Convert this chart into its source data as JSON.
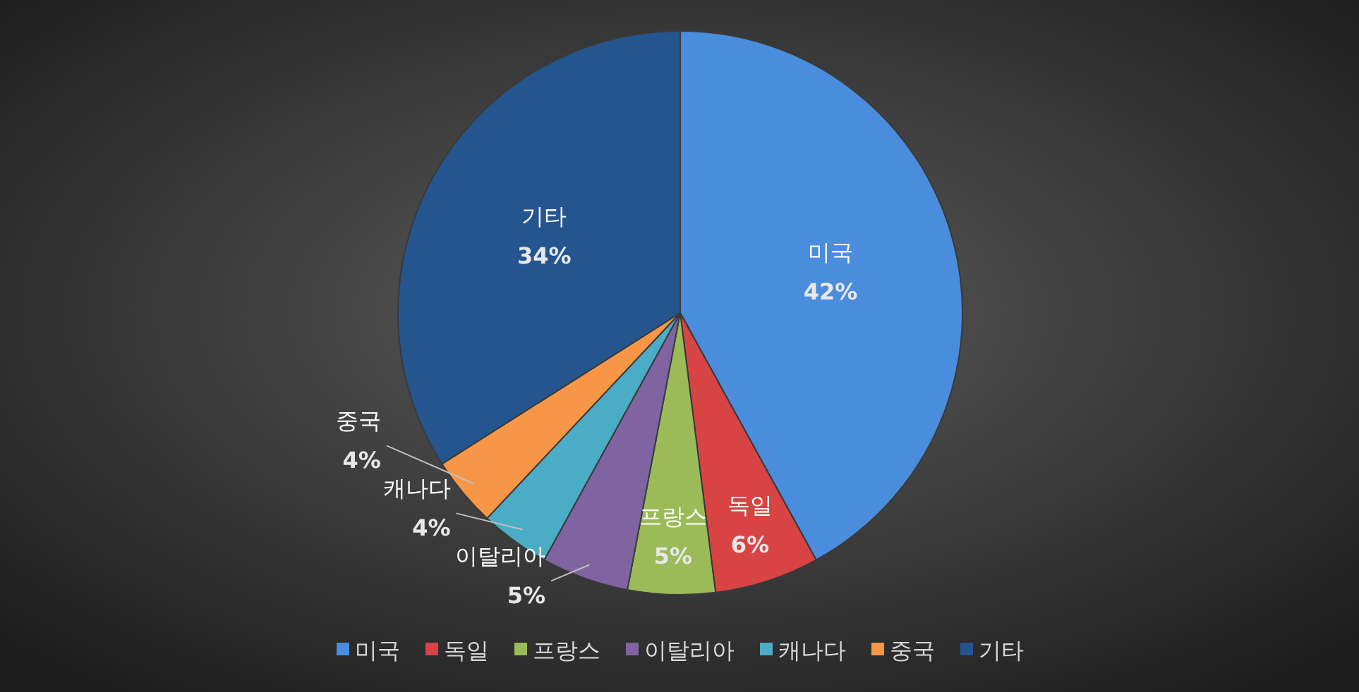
{
  "chart_data": {
    "type": "pie",
    "categories": [
      "미국",
      "독일",
      "프랑스",
      "이탈리아",
      "캐나다",
      "중국",
      "기타"
    ],
    "values": [
      42,
      6,
      5,
      5,
      4,
      4,
      34
    ],
    "value_labels": [
      "42%",
      "6%",
      "5%",
      "5%",
      "4%",
      "4%",
      "34%"
    ],
    "colors": [
      "#4a8ddc",
      "#d84444",
      "#9bbb59",
      "#8064a2",
      "#4bacc6",
      "#f79646",
      "#24558f"
    ],
    "legend": "bottom"
  }
}
